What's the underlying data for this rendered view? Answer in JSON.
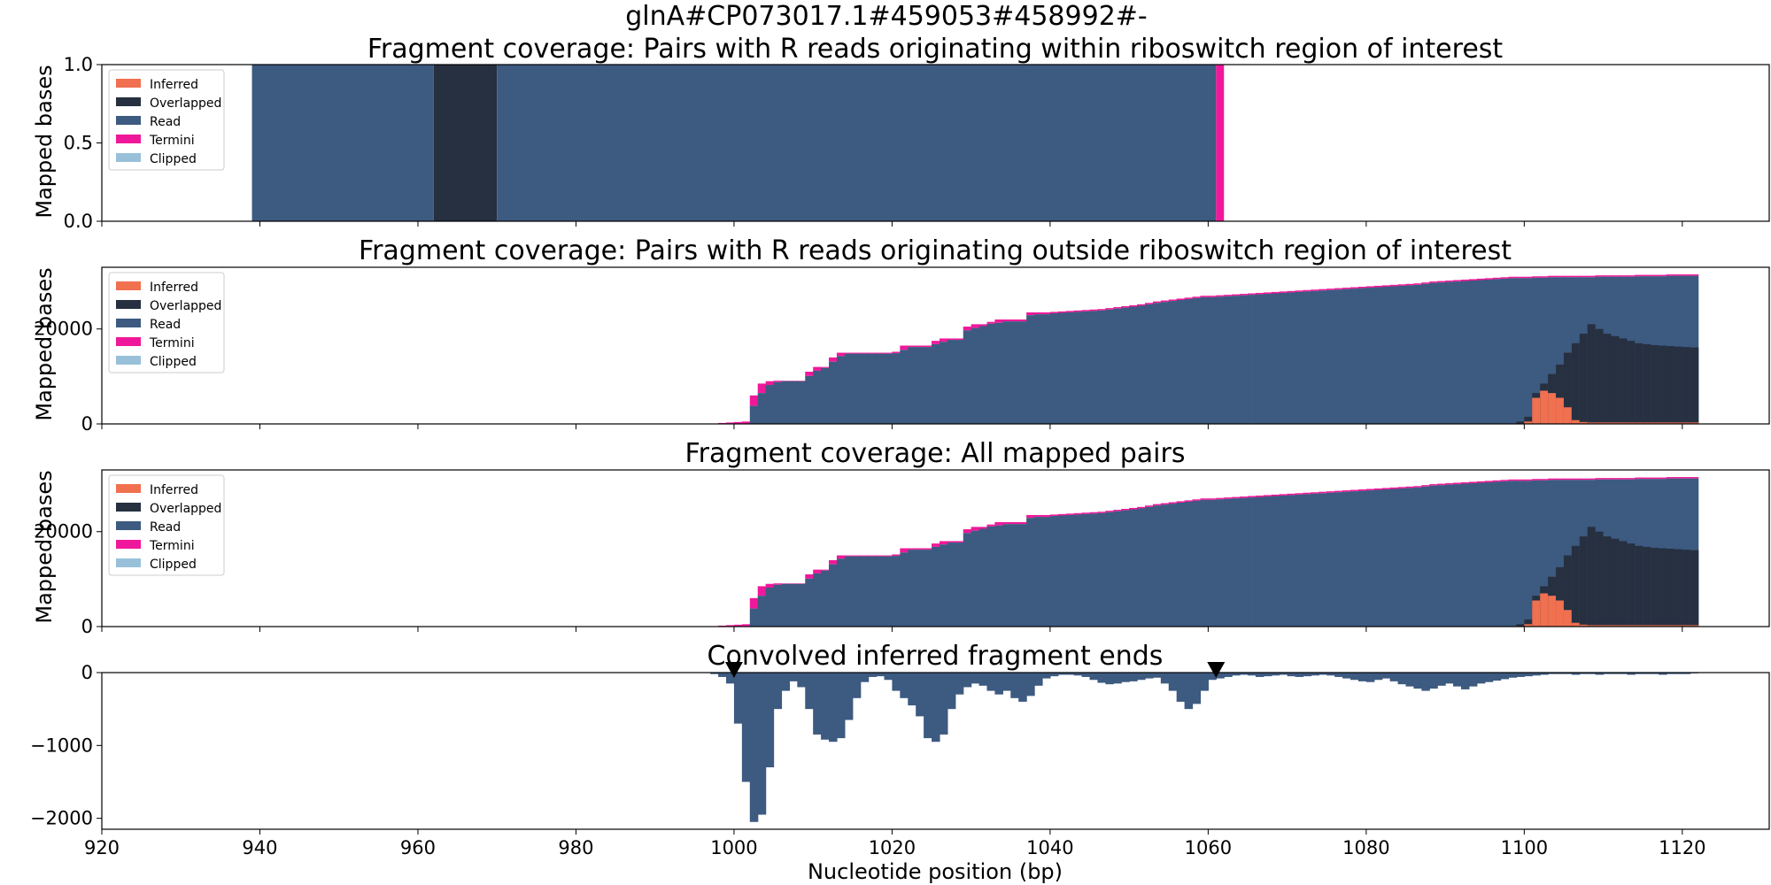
{
  "figure": {
    "title": "glnA#CP073017.1#459053#458992#-",
    "xlabel": "Nucleotide position (bp)",
    "colors": {
      "Inferred": "#f07050",
      "Overlapped": "#263040",
      "Read": "#3d5a80",
      "Termini": "#f0189a",
      "Clipped": "#98c1d9"
    }
  },
  "chart_data": [
    {
      "type": "area",
      "title": "Fragment coverage: Pairs with R reads originating within riboswitch region of interest",
      "ylabel": "Mapped bases",
      "xlim": [
        920,
        1131
      ],
      "ylim": [
        0,
        1.0
      ],
      "yticks": [
        "0.0",
        "0.5",
        "1.0"
      ],
      "xticks": [
        "920",
        "940",
        "960",
        "980",
        "1000",
        "1020",
        "1040",
        "1060",
        "1080",
        "1100",
        "1120"
      ],
      "legend": [
        "Inferred",
        "Overlapped",
        "Read",
        "Termini",
        "Clipped"
      ],
      "legend_position": "top-left",
      "segments": [
        {
          "series": "Read",
          "start": 939,
          "end": 962,
          "value": 1
        },
        {
          "series": "Overlapped",
          "start": 962,
          "end": 970,
          "value": 1
        },
        {
          "series": "Read",
          "start": 970,
          "end": 1061,
          "value": 1
        },
        {
          "series": "Termini",
          "start": 1061,
          "end": 1062,
          "value": 1
        }
      ]
    },
    {
      "type": "area",
      "title": "Fragment coverage: Pairs with R reads originating outside riboswitch region of interest",
      "ylabel": "Mapped bases",
      "xlim": [
        920,
        1131
      ],
      "ylim": [
        0,
        33000
      ],
      "yticks": [
        "0",
        "20000"
      ],
      "legend": [
        "Inferred",
        "Overlapped",
        "Read",
        "Termini",
        "Clipped"
      ],
      "legend_position": "top-left",
      "x": [
        998,
        999,
        1000,
        1001,
        1002,
        1003,
        1004,
        1005,
        1006,
        1007,
        1008,
        1009,
        1010,
        1011,
        1012,
        1013,
        1014,
        1015,
        1016,
        1017,
        1018,
        1019,
        1020,
        1021,
        1022,
        1023,
        1024,
        1025,
        1026,
        1027,
        1028,
        1029,
        1030,
        1031,
        1032,
        1033,
        1034,
        1035,
        1036,
        1037,
        1038,
        1039,
        1040,
        1041,
        1042,
        1043,
        1044,
        1045,
        1046,
        1047,
        1048,
        1049,
        1050,
        1051,
        1052,
        1053,
        1054,
        1055,
        1056,
        1057,
        1058,
        1059,
        1060,
        1061,
        1062,
        1063,
        1064,
        1065,
        1066,
        1067,
        1068,
        1069,
        1070,
        1071,
        1072,
        1073,
        1074,
        1075,
        1076,
        1077,
        1078,
        1079,
        1080,
        1081,
        1082,
        1083,
        1084,
        1085,
        1086,
        1087,
        1088,
        1089,
        1090,
        1091,
        1092,
        1093,
        1094,
        1095,
        1096,
        1097,
        1098,
        1099,
        1100,
        1101,
        1102,
        1103,
        1104,
        1105,
        1106,
        1107,
        1108,
        1109,
        1110,
        1111,
        1112,
        1113,
        1114,
        1115,
        1116,
        1117,
        1118,
        1119,
        1120,
        1121
      ],
      "total": [
        200,
        300,
        400,
        500,
        6000,
        8500,
        9000,
        9100,
        9100,
        9100,
        9100,
        11000,
        12000,
        12000,
        14000,
        15000,
        15000,
        15000,
        15000,
        15000,
        15000,
        15000,
        15200,
        16500,
        16500,
        16500,
        16500,
        17500,
        18000,
        18000,
        18000,
        20500,
        21000,
        21000,
        21500,
        22000,
        22000,
        22000,
        22000,
        23500,
        23500,
        23500,
        23600,
        23700,
        23800,
        23900,
        24000,
        24100,
        24200,
        24400,
        24600,
        24800,
        25000,
        25200,
        25500,
        25800,
        26000,
        26200,
        26400,
        26600,
        26800,
        27000,
        27000,
        27100,
        27200,
        27300,
        27400,
        27500,
        27600,
        27700,
        27800,
        27900,
        28000,
        28100,
        28200,
        28300,
        28400,
        28500,
        28600,
        28700,
        28800,
        28900,
        29000,
        29100,
        29200,
        29300,
        29400,
        29500,
        29600,
        29800,
        30000,
        30100,
        30200,
        30300,
        30400,
        30500,
        30600,
        30700,
        30800,
        30900,
        31000,
        31000,
        31000,
        31100,
        31100,
        31200,
        31200,
        31200,
        31200,
        31200,
        31200,
        31300,
        31300,
        31300,
        31300,
        31300,
        31400,
        31400,
        31400,
        31400,
        31500,
        31500,
        31500,
        31500
      ],
      "termini_band": [
        200,
        300,
        400,
        500,
        2200,
        2000,
        800,
        300,
        100,
        100,
        100,
        900,
        800,
        200,
        900,
        700,
        200,
        200,
        200,
        200,
        200,
        200,
        300,
        900,
        300,
        300,
        300,
        700,
        700,
        300,
        300,
        800,
        800,
        400,
        400,
        700,
        400,
        400,
        400,
        600,
        400,
        400,
        300,
        300,
        300,
        300,
        300,
        300,
        300,
        300,
        300,
        300,
        300,
        300,
        300,
        300,
        300,
        300,
        300,
        300,
        300,
        300,
        300,
        300,
        300,
        300,
        300,
        300,
        300,
        300,
        300,
        300,
        300,
        300,
        300,
        300,
        300,
        300,
        300,
        300,
        300,
        300,
        300,
        300,
        300,
        300,
        300,
        300,
        300,
        300,
        300,
        300,
        300,
        300,
        300,
        300,
        300,
        300,
        300,
        300,
        300,
        300,
        300,
        300,
        300,
        300,
        300,
        300,
        300,
        300,
        300,
        300,
        300,
        300,
        300,
        300,
        300,
        300,
        300,
        300,
        300,
        300,
        300,
        300
      ],
      "overlapped": [
        0,
        0,
        0,
        0,
        0,
        0,
        0,
        0,
        0,
        0,
        0,
        0,
        0,
        0,
        0,
        0,
        0,
        0,
        0,
        0,
        0,
        0,
        0,
        0,
        0,
        0,
        0,
        0,
        0,
        0,
        0,
        0,
        0,
        0,
        0,
        0,
        0,
        0,
        0,
        0,
        0,
        0,
        0,
        0,
        0,
        0,
        0,
        0,
        0,
        0,
        0,
        0,
        0,
        0,
        0,
        0,
        0,
        0,
        0,
        0,
        0,
        0,
        0,
        0,
        0,
        0,
        0,
        0,
        0,
        0,
        0,
        0,
        0,
        0,
        0,
        0,
        0,
        0,
        0,
        0,
        0,
        0,
        0,
        0,
        0,
        0,
        0,
        0,
        0,
        0,
        0,
        0,
        0,
        0,
        0,
        0,
        0,
        0,
        0,
        0,
        0,
        500,
        1500,
        6500,
        8500,
        10500,
        12500,
        15000,
        17000,
        19000,
        21000,
        20000,
        19000,
        18500,
        18000,
        17500,
        17000,
        16800,
        16600,
        16500,
        16400,
        16300,
        16200,
        16100
      ],
      "inferred": [
        0,
        0,
        0,
        0,
        0,
        0,
        0,
        0,
        0,
        0,
        0,
        0,
        0,
        0,
        0,
        0,
        0,
        0,
        0,
        0,
        0,
        0,
        0,
        0,
        0,
        0,
        0,
        0,
        0,
        0,
        0,
        0,
        0,
        0,
        0,
        0,
        0,
        0,
        0,
        0,
        0,
        0,
        0,
        0,
        0,
        0,
        0,
        0,
        0,
        0,
        0,
        0,
        0,
        0,
        0,
        0,
        0,
        0,
        0,
        0,
        0,
        0,
        0,
        0,
        0,
        0,
        0,
        0,
        0,
        0,
        0,
        0,
        0,
        0,
        0,
        0,
        0,
        0,
        0,
        0,
        0,
        0,
        0,
        0,
        0,
        0,
        0,
        0,
        0,
        0,
        0,
        0,
        0,
        0,
        0,
        0,
        0,
        0,
        0,
        0,
        0,
        100,
        500,
        5500,
        7000,
        6500,
        5500,
        3500,
        800,
        400,
        300,
        300,
        300,
        300,
        300,
        300,
        300,
        300,
        300,
        300,
        300,
        300,
        300,
        300
      ]
    },
    {
      "type": "area",
      "title": "Fragment coverage: All mapped pairs",
      "ylabel": "Mapped bases",
      "xlim": [
        920,
        1131
      ],
      "ylim": [
        0,
        33000
      ],
      "yticks": [
        "0",
        "20000"
      ],
      "legend": [
        "Inferred",
        "Overlapped",
        "Read",
        "Termini",
        "Clipped"
      ],
      "legend_position": "top-left",
      "same_as_previous_panel": true
    },
    {
      "type": "bar",
      "title": "Convolved inferred fragment ends",
      "xlabel": "Nucleotide position (bp)",
      "xlim": [
        920,
        1131
      ],
      "ylim": [
        -2150,
        0
      ],
      "yticks": [
        "0",
        "−1000",
        "−2000"
      ],
      "markers_x": [
        1000,
        1061
      ],
      "x": [
        997,
        998,
        999,
        1000,
        1001,
        1002,
        1003,
        1004,
        1005,
        1006,
        1007,
        1008,
        1009,
        1010,
        1011,
        1012,
        1013,
        1014,
        1015,
        1016,
        1017,
        1018,
        1019,
        1020,
        1021,
        1022,
        1023,
        1024,
        1025,
        1026,
        1027,
        1028,
        1029,
        1030,
        1031,
        1032,
        1033,
        1034,
        1035,
        1036,
        1037,
        1038,
        1039,
        1040,
        1041,
        1042,
        1043,
        1044,
        1045,
        1046,
        1047,
        1048,
        1049,
        1050,
        1051,
        1052,
        1053,
        1054,
        1055,
        1056,
        1057,
        1058,
        1059,
        1060,
        1061,
        1062,
        1063,
        1064,
        1065,
        1066,
        1067,
        1068,
        1069,
        1070,
        1071,
        1072,
        1073,
        1074,
        1075,
        1076,
        1077,
        1078,
        1079,
        1080,
        1081,
        1082,
        1083,
        1084,
        1085,
        1086,
        1087,
        1088,
        1089,
        1090,
        1091,
        1092,
        1093,
        1094,
        1095,
        1096,
        1097,
        1098,
        1099,
        1100,
        1101,
        1102,
        1103,
        1104,
        1105,
        1106,
        1107,
        1108,
        1109,
        1110,
        1111,
        1112,
        1113,
        1114,
        1115,
        1116,
        1117,
        1118,
        1119,
        1120,
        1121
      ],
      "values": [
        -20,
        -60,
        -150,
        -700,
        -1500,
        -2050,
        -1950,
        -1300,
        -500,
        -250,
        -120,
        -200,
        -500,
        -850,
        -920,
        -950,
        -900,
        -650,
        -350,
        -130,
        -60,
        -50,
        -100,
        -250,
        -350,
        -450,
        -600,
        -900,
        -950,
        -850,
        -500,
        -300,
        -200,
        -150,
        -180,
        -250,
        -300,
        -250,
        -350,
        -400,
        -320,
        -180,
        -80,
        -50,
        -30,
        -30,
        -40,
        -60,
        -100,
        -140,
        -160,
        -150,
        -130,
        -120,
        -100,
        -80,
        -70,
        -150,
        -250,
        -400,
        -500,
        -430,
        -250,
        -100,
        -80,
        -60,
        -40,
        -30,
        -40,
        -60,
        -50,
        -40,
        -30,
        -50,
        -60,
        -50,
        -40,
        -30,
        -40,
        -60,
        -80,
        -100,
        -120,
        -130,
        -100,
        -80,
        -120,
        -160,
        -190,
        -220,
        -250,
        -220,
        -180,
        -150,
        -190,
        -230,
        -190,
        -150,
        -130,
        -110,
        -90,
        -70,
        -60,
        -50,
        -40,
        -30,
        -20,
        -20,
        -20,
        -30,
        -20,
        -20,
        -30,
        -20,
        -20,
        -20,
        -30,
        -20,
        -20,
        -20,
        -30,
        -20,
        -20,
        -20,
        -10
      ]
    }
  ]
}
